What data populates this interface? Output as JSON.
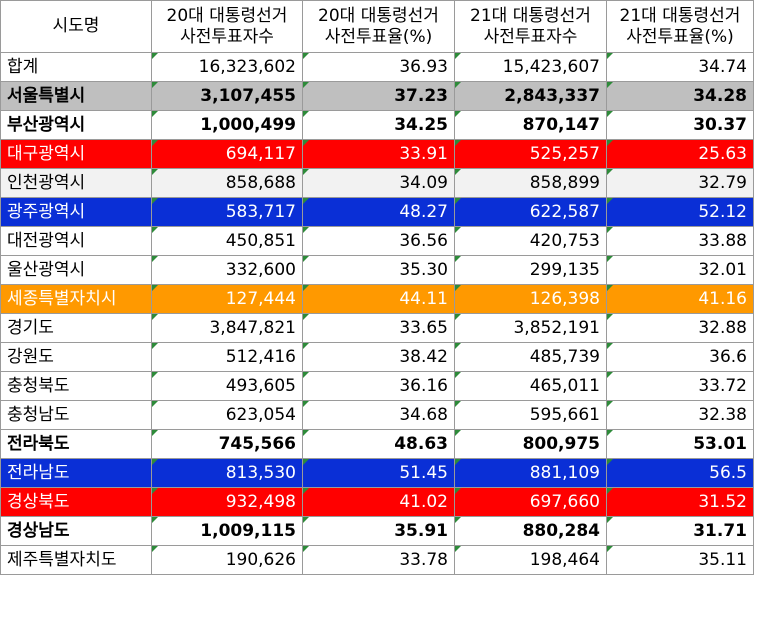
{
  "headers": [
    {
      "line1": "시도명",
      "line2": ""
    },
    {
      "line1": "20대 대통령선거",
      "line2": "사전투표자수"
    },
    {
      "line1": "20대 대통령선거",
      "line2": "사전투표율(%)"
    },
    {
      "line1": "21대 대통령선거",
      "line2": "사전투표자수"
    },
    {
      "line1": "21대 대통령선거",
      "line2": "사전투표율(%)"
    }
  ],
  "rows": [
    {
      "name": "합계",
      "v20": "16,323,602",
      "r20": "36.93",
      "v21": "15,423,607",
      "r21": "34.74",
      "bg": "#ffffff",
      "fg": "#000000",
      "bold": false
    },
    {
      "name": "서울특별시",
      "v20": "3,107,455",
      "r20": "37.23",
      "v21": "2,843,337",
      "r21": "34.28",
      "bg": "#bfbfbf",
      "fg": "#000000",
      "bold": true
    },
    {
      "name": "부산광역시",
      "v20": "1,000,499",
      "r20": "34.25",
      "v21": "870,147",
      "r21": "30.37",
      "bg": "#ffffff",
      "fg": "#000000",
      "bold": true
    },
    {
      "name": "대구광역시",
      "v20": "694,117",
      "r20": "33.91",
      "v21": "525,257",
      "r21": "25.63",
      "bg": "#ff0000",
      "fg": "#ffffff",
      "bold": false
    },
    {
      "name": "인천광역시",
      "v20": "858,688",
      "r20": "34.09",
      "v21": "858,899",
      "r21": "32.79",
      "bg": "#f2f2f2",
      "fg": "#000000",
      "bold": false
    },
    {
      "name": "광주광역시",
      "v20": "583,717",
      "r20": "48.27",
      "v21": "622,587",
      "r21": "52.12",
      "bg": "#0a2fd6",
      "fg": "#ffffff",
      "bold": false
    },
    {
      "name": "대전광역시",
      "v20": "450,851",
      "r20": "36.56",
      "v21": "420,753",
      "r21": "33.88",
      "bg": "#ffffff",
      "fg": "#000000",
      "bold": false
    },
    {
      "name": "울산광역시",
      "v20": "332,600",
      "r20": "35.30",
      "v21": "299,135",
      "r21": "32.01",
      "bg": "#ffffff",
      "fg": "#000000",
      "bold": false
    },
    {
      "name": "세종특별자치시",
      "v20": "127,444",
      "r20": "44.11",
      "v21": "126,398",
      "r21": "41.16",
      "bg": "#ff9900",
      "fg": "#ffffff",
      "bold": false
    },
    {
      "name": "경기도",
      "v20": "3,847,821",
      "r20": "33.65",
      "v21": "3,852,191",
      "r21": "32.88",
      "bg": "#ffffff",
      "fg": "#000000",
      "bold": false
    },
    {
      "name": "강원도",
      "v20": "512,416",
      "r20": "38.42",
      "v21": "485,739",
      "r21": "36.6",
      "bg": "#ffffff",
      "fg": "#000000",
      "bold": false
    },
    {
      "name": "충청북도",
      "v20": "493,605",
      "r20": "36.16",
      "v21": "465,011",
      "r21": "33.72",
      "bg": "#ffffff",
      "fg": "#000000",
      "bold": false
    },
    {
      "name": "충청남도",
      "v20": "623,054",
      "r20": "34.68",
      "v21": "595,661",
      "r21": "32.38",
      "bg": "#ffffff",
      "fg": "#000000",
      "bold": false
    },
    {
      "name": "전라북도",
      "v20": "745,566",
      "r20": "48.63",
      "v21": "800,975",
      "r21": "53.01",
      "bg": "#ffffff",
      "fg": "#000000",
      "bold": true
    },
    {
      "name": "전라남도",
      "v20": "813,530",
      "r20": "51.45",
      "v21": "881,109",
      "r21": "56.5",
      "bg": "#0a2fd6",
      "fg": "#ffffff",
      "bold": false
    },
    {
      "name": "경상북도",
      "v20": "932,498",
      "r20": "41.02",
      "v21": "697,660",
      "r21": "31.52",
      "bg": "#ff0000",
      "fg": "#ffffff",
      "bold": false
    },
    {
      "name": "경상남도",
      "v20": "1,009,115",
      "r20": "35.91",
      "v21": "880,284",
      "r21": "31.71",
      "bg": "#ffffff",
      "fg": "#000000",
      "bold": true
    },
    {
      "name": "제주특별자치도",
      "v20": "190,626",
      "r20": "33.78",
      "v21": "198,464",
      "r21": "35.11",
      "bg": "#ffffff",
      "fg": "#000000",
      "bold": false
    }
  ]
}
